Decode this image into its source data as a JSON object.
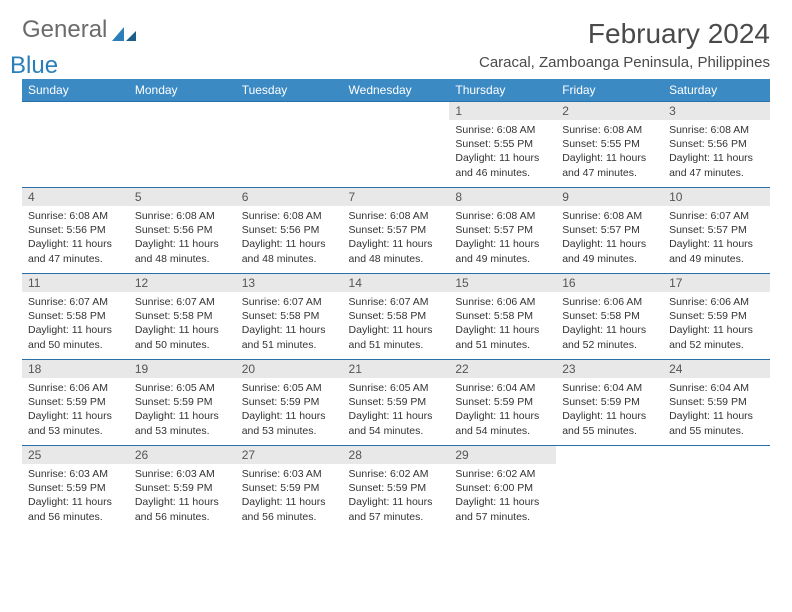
{
  "brand": {
    "word1": "General",
    "word2": "Blue"
  },
  "title": "February 2024",
  "location": "Caracal, Zamboanga Peninsula, Philippines",
  "colors": {
    "header_bg": "#3b8ac4",
    "header_text": "#ffffff",
    "daynum_bg": "#e8e8e8",
    "border": "#2a6fa8",
    "logo_gray": "#6b6b6b",
    "logo_blue": "#2a7fba"
  },
  "daysOfWeek": [
    "Sunday",
    "Monday",
    "Tuesday",
    "Wednesday",
    "Thursday",
    "Friday",
    "Saturday"
  ],
  "startOffset": 4,
  "days": [
    {
      "n": 1,
      "sunrise": "6:08 AM",
      "sunset": "5:55 PM",
      "dl": "11 hours and 46 minutes."
    },
    {
      "n": 2,
      "sunrise": "6:08 AM",
      "sunset": "5:55 PM",
      "dl": "11 hours and 47 minutes."
    },
    {
      "n": 3,
      "sunrise": "6:08 AM",
      "sunset": "5:56 PM",
      "dl": "11 hours and 47 minutes."
    },
    {
      "n": 4,
      "sunrise": "6:08 AM",
      "sunset": "5:56 PM",
      "dl": "11 hours and 47 minutes."
    },
    {
      "n": 5,
      "sunrise": "6:08 AM",
      "sunset": "5:56 PM",
      "dl": "11 hours and 48 minutes."
    },
    {
      "n": 6,
      "sunrise": "6:08 AM",
      "sunset": "5:56 PM",
      "dl": "11 hours and 48 minutes."
    },
    {
      "n": 7,
      "sunrise": "6:08 AM",
      "sunset": "5:57 PM",
      "dl": "11 hours and 48 minutes."
    },
    {
      "n": 8,
      "sunrise": "6:08 AM",
      "sunset": "5:57 PM",
      "dl": "11 hours and 49 minutes."
    },
    {
      "n": 9,
      "sunrise": "6:08 AM",
      "sunset": "5:57 PM",
      "dl": "11 hours and 49 minutes."
    },
    {
      "n": 10,
      "sunrise": "6:07 AM",
      "sunset": "5:57 PM",
      "dl": "11 hours and 49 minutes."
    },
    {
      "n": 11,
      "sunrise": "6:07 AM",
      "sunset": "5:58 PM",
      "dl": "11 hours and 50 minutes."
    },
    {
      "n": 12,
      "sunrise": "6:07 AM",
      "sunset": "5:58 PM",
      "dl": "11 hours and 50 minutes."
    },
    {
      "n": 13,
      "sunrise": "6:07 AM",
      "sunset": "5:58 PM",
      "dl": "11 hours and 51 minutes."
    },
    {
      "n": 14,
      "sunrise": "6:07 AM",
      "sunset": "5:58 PM",
      "dl": "11 hours and 51 minutes."
    },
    {
      "n": 15,
      "sunrise": "6:06 AM",
      "sunset": "5:58 PM",
      "dl": "11 hours and 51 minutes."
    },
    {
      "n": 16,
      "sunrise": "6:06 AM",
      "sunset": "5:58 PM",
      "dl": "11 hours and 52 minutes."
    },
    {
      "n": 17,
      "sunrise": "6:06 AM",
      "sunset": "5:59 PM",
      "dl": "11 hours and 52 minutes."
    },
    {
      "n": 18,
      "sunrise": "6:06 AM",
      "sunset": "5:59 PM",
      "dl": "11 hours and 53 minutes."
    },
    {
      "n": 19,
      "sunrise": "6:05 AM",
      "sunset": "5:59 PM",
      "dl": "11 hours and 53 minutes."
    },
    {
      "n": 20,
      "sunrise": "6:05 AM",
      "sunset": "5:59 PM",
      "dl": "11 hours and 53 minutes."
    },
    {
      "n": 21,
      "sunrise": "6:05 AM",
      "sunset": "5:59 PM",
      "dl": "11 hours and 54 minutes."
    },
    {
      "n": 22,
      "sunrise": "6:04 AM",
      "sunset": "5:59 PM",
      "dl": "11 hours and 54 minutes."
    },
    {
      "n": 23,
      "sunrise": "6:04 AM",
      "sunset": "5:59 PM",
      "dl": "11 hours and 55 minutes."
    },
    {
      "n": 24,
      "sunrise": "6:04 AM",
      "sunset": "5:59 PM",
      "dl": "11 hours and 55 minutes."
    },
    {
      "n": 25,
      "sunrise": "6:03 AM",
      "sunset": "5:59 PM",
      "dl": "11 hours and 56 minutes."
    },
    {
      "n": 26,
      "sunrise": "6:03 AM",
      "sunset": "5:59 PM",
      "dl": "11 hours and 56 minutes."
    },
    {
      "n": 27,
      "sunrise": "6:03 AM",
      "sunset": "5:59 PM",
      "dl": "11 hours and 56 minutes."
    },
    {
      "n": 28,
      "sunrise": "6:02 AM",
      "sunset": "5:59 PM",
      "dl": "11 hours and 57 minutes."
    },
    {
      "n": 29,
      "sunrise": "6:02 AM",
      "sunset": "6:00 PM",
      "dl": "11 hours and 57 minutes."
    }
  ],
  "labels": {
    "sunrise": "Sunrise:",
    "sunset": "Sunset:",
    "daylight": "Daylight:"
  }
}
